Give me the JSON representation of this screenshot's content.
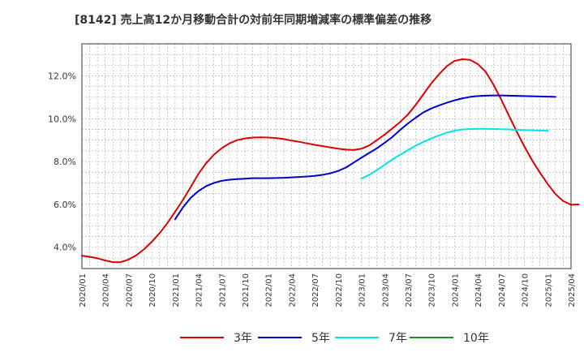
{
  "chart_data": {
    "type": "line",
    "title": "[8142]  売上高12か月移動合計の対前年同期増減率の標準偏差の推移",
    "xlabel": "",
    "ylabel": "",
    "x_ticks": [
      "2020/01",
      "2020/04",
      "2020/07",
      "2020/10",
      "2021/01",
      "2021/04",
      "2021/07",
      "2021/10",
      "2022/01",
      "2022/04",
      "2022/07",
      "2022/10",
      "2023/01",
      "2023/04",
      "2023/07",
      "2023/10",
      "2024/01",
      "2024/04",
      "2024/07",
      "2024/10",
      "2025/01",
      "2025/04"
    ],
    "y_ticks": [
      "4.0%",
      "6.0%",
      "8.0%",
      "10.0%",
      "12.0%"
    ],
    "ylim": [
      3.0,
      13.5
    ],
    "grid": true,
    "legend_position": "bottom",
    "series": [
      {
        "name": "3年",
        "color": "#dd0000",
        "start": "2020/01",
        "values": [
          3.6,
          3.55,
          3.48,
          3.38,
          3.3,
          3.3,
          3.42,
          3.62,
          3.9,
          4.25,
          4.65,
          5.12,
          5.65,
          6.2,
          6.8,
          7.42,
          7.92,
          8.32,
          8.62,
          8.85,
          9.0,
          9.08,
          9.12,
          9.13,
          9.12,
          9.1,
          9.05,
          8.98,
          8.92,
          8.85,
          8.78,
          8.72,
          8.66,
          8.6,
          8.56,
          8.54,
          8.6,
          8.75,
          9.0,
          9.26,
          9.55,
          9.85,
          10.2,
          10.65,
          11.15,
          11.65,
          12.08,
          12.45,
          12.7,
          12.78,
          12.75,
          12.55,
          12.2,
          11.6,
          10.9,
          10.15,
          9.4,
          8.7,
          8.05,
          7.48,
          6.95,
          6.48,
          6.15,
          5.98,
          6.0
        ]
      },
      {
        "name": "5年",
        "color": "#0000cc",
        "start": "2021/01",
        "values": [
          5.3,
          5.85,
          6.3,
          6.62,
          6.85,
          7.0,
          7.1,
          7.15,
          7.18,
          7.2,
          7.22,
          7.22,
          7.22,
          7.23,
          7.24,
          7.26,
          7.28,
          7.3,
          7.33,
          7.38,
          7.45,
          7.56,
          7.72,
          7.95,
          8.18,
          8.4,
          8.62,
          8.88,
          9.15,
          9.48,
          9.78,
          10.05,
          10.3,
          10.48,
          10.62,
          10.75,
          10.86,
          10.95,
          11.02,
          11.06,
          11.08,
          11.09,
          11.09,
          11.08,
          11.07,
          11.06,
          11.05,
          11.04,
          11.03,
          11.02
        ]
      },
      {
        "name": "7年",
        "color": "#00e5e5",
        "start": "2023/01",
        "values": [
          7.2,
          7.38,
          7.6,
          7.85,
          8.1,
          8.32,
          8.53,
          8.74,
          8.92,
          9.08,
          9.22,
          9.35,
          9.44,
          9.5,
          9.52,
          9.53,
          9.53,
          9.52,
          9.51,
          9.5,
          9.48,
          9.47,
          9.46,
          9.45,
          9.44
        ]
      },
      {
        "name": "10年",
        "color": "#228b22",
        "start": "",
        "values": []
      }
    ]
  }
}
